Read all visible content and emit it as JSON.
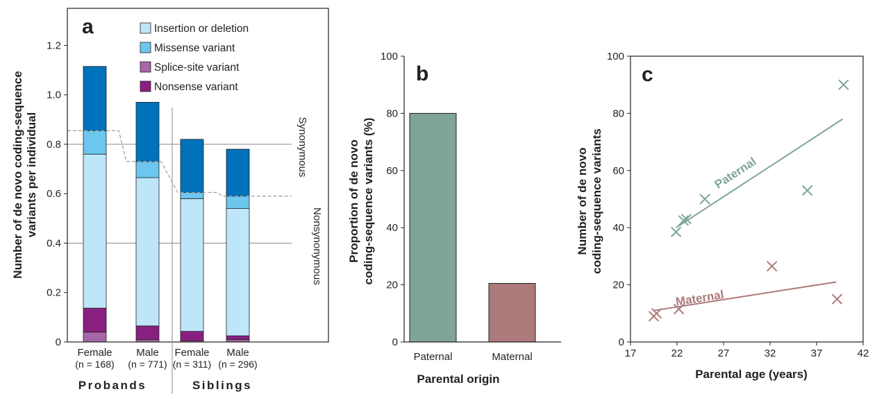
{
  "colors": {
    "indel": "#bde6f9",
    "missense": "#6cc6ee",
    "splice": "#a666a8",
    "nonsense": "#8a1f82",
    "synonymous": "#0072bb",
    "paternal": "#7fa596",
    "maternal": "#ad7a7b",
    "axis": "#231f20",
    "refline": "#8a8a8a",
    "dashed": "#9a9a9a"
  },
  "chart_data": [
    {
      "panel": "a",
      "type": "bar",
      "stacked": true,
      "ylabel": "Number of de novo coding-sequence variants per individual",
      "ylim": [
        0,
        1.35
      ],
      "yticks": [
        "0",
        "0.2",
        "0.4",
        "0.6",
        "0.8",
        "1.0",
        "1.2"
      ],
      "categories": [
        {
          "label": "Female",
          "n": "(n = 168)",
          "group": "Probands"
        },
        {
          "label": "Male",
          "n": "(n = 771)",
          "group": "Probands"
        },
        {
          "label": "Female",
          "n": "(n = 311)",
          "group": "Siblings"
        },
        {
          "label": "Male",
          "n": "(n = 296)",
          "group": "Siblings"
        }
      ],
      "groups": [
        "Probands",
        "Siblings"
      ],
      "series": [
        {
          "key": "splice",
          "name": "Splice-site variant",
          "values": [
            0.04,
            0.01,
            0.005,
            0.01
          ]
        },
        {
          "key": "nonsense",
          "name": "Nonsense variant",
          "values": [
            0.097,
            0.055,
            0.038,
            0.015
          ]
        },
        {
          "key": "indel",
          "name": "Insertion or deletion",
          "values": [
            0.623,
            0.6,
            0.537,
            0.515
          ]
        },
        {
          "key": "missense",
          "name": "Missense variant",
          "values": [
            0.095,
            0.065,
            0.025,
            0.05
          ]
        },
        {
          "key": "synonymous",
          "name": "",
          "values": [
            0.26,
            0.24,
            0.215,
            0.19
          ]
        }
      ],
      "legend_order": [
        "Insertion or deletion",
        "Missense variant",
        "Splice-site variant",
        "Nonsense variant"
      ],
      "legend_placement": "top-right",
      "reference_lines": [
        0.8,
        0.4
      ],
      "nonsynonymous_level": [
        0.855,
        0.73,
        0.605,
        0.59
      ],
      "side_labels": [
        "Synonymous",
        "Nonsynonymous"
      ]
    },
    {
      "panel": "b",
      "type": "bar",
      "xlabel": "Parental origin",
      "ylabel": "Proportion of de novo coding-sequence variants (%)",
      "ylim": [
        0,
        100
      ],
      "yticks": [
        "0",
        "20",
        "40",
        "60",
        "80",
        "100"
      ],
      "categories": [
        "Paternal",
        "Maternal"
      ],
      "values": [
        80,
        20.5
      ]
    },
    {
      "panel": "c",
      "type": "scatter",
      "xlabel": "Parental age (years)",
      "ylabel": "Number of de novo coding-sequence variants",
      "xlim": [
        17,
        42
      ],
      "ylim": [
        0,
        100
      ],
      "xticks": [
        "17",
        "22",
        "27",
        "32",
        "37",
        "42"
      ],
      "yticks": [
        "0",
        "20",
        "40",
        "60",
        "80",
        "100"
      ],
      "series": [
        {
          "name": "Paternal",
          "points": [
            [
              21.9,
              38.5
            ],
            [
              22.7,
              42.5
            ],
            [
              23.0,
              43.0
            ],
            [
              25.0,
              50.0
            ],
            [
              36.0,
              53.0
            ],
            [
              39.9,
              90.0
            ]
          ],
          "fit": [
            [
              21.9,
              40.0
            ],
            [
              39.8,
              78.0
            ]
          ]
        },
        {
          "name": "Maternal",
          "points": [
            [
              19.5,
              9.0
            ],
            [
              19.8,
              10.0
            ],
            [
              22.2,
              11.5
            ],
            [
              32.2,
              26.5
            ],
            [
              39.2,
              15.0
            ]
          ],
          "fit": [
            [
              19.5,
              11.0
            ],
            [
              39.1,
              21.0
            ]
          ]
        }
      ]
    }
  ]
}
